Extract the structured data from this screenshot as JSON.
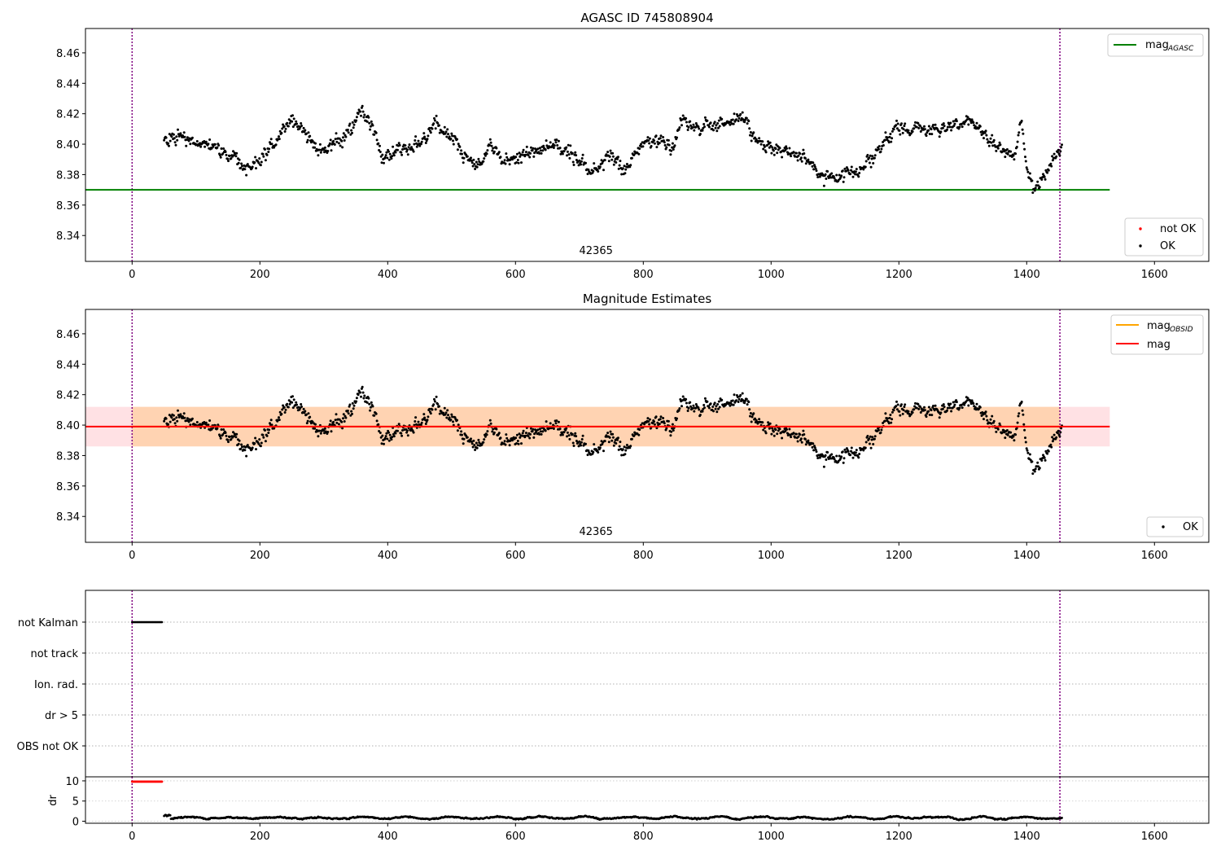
{
  "chart_data": [
    {
      "type": "scatter",
      "title": "AGASC ID 745808904",
      "xlim": [
        -73,
        1685
      ],
      "ylim": [
        8.323,
        8.476
      ],
      "x_ticks": [
        0,
        200,
        400,
        600,
        800,
        1000,
        1200,
        1400,
        1600
      ],
      "y_ticks": [
        8.34,
        8.36,
        8.38,
        8.4,
        8.42,
        8.44,
        8.46
      ],
      "annotation": "42365",
      "annotation_x": 726,
      "vlines": [
        0,
        1452
      ],
      "hline": {
        "label": "mag",
        "label_sub": "AGASC",
        "value": 8.37,
        "x_range": [
          -73,
          1530
        ],
        "color": "#008000"
      },
      "legend_top": {
        "position": "top-right",
        "entries": [
          {
            "label": "mag",
            "sub": "AGASC",
            "color": "#008000",
            "kind": "line"
          }
        ]
      },
      "legend_bottom": {
        "position": "bottom-right",
        "entries": [
          {
            "label": "not OK",
            "color": "#ff0000",
            "kind": "dot"
          },
          {
            "label": "OK",
            "color": "#000000",
            "kind": "dot"
          }
        ]
      },
      "series": [
        {
          "name": "OK",
          "color": "#000000",
          "x_range": [
            50,
            1455
          ],
          "n_points": 1300
        }
      ],
      "trend_knots": [
        [
          50,
          8.403
        ],
        [
          80,
          8.405
        ],
        [
          110,
          8.401
        ],
        [
          140,
          8.395
        ],
        [
          175,
          8.386
        ],
        [
          200,
          8.388
        ],
        [
          225,
          8.403
        ],
        [
          250,
          8.415
        ],
        [
          270,
          8.41
        ],
        [
          290,
          8.396
        ],
        [
          320,
          8.399
        ],
        [
          345,
          8.412
        ],
        [
          360,
          8.422
        ],
        [
          375,
          8.412
        ],
        [
          390,
          8.391
        ],
        [
          410,
          8.394
        ],
        [
          435,
          8.397
        ],
        [
          455,
          8.402
        ],
        [
          475,
          8.412
        ],
        [
          500,
          8.405
        ],
        [
          520,
          8.393
        ],
        [
          540,
          8.384
        ],
        [
          560,
          8.4
        ],
        [
          585,
          8.389
        ],
        [
          620,
          8.393
        ],
        [
          660,
          8.402
        ],
        [
          700,
          8.389
        ],
        [
          725,
          8.382
        ],
        [
          745,
          8.393
        ],
        [
          775,
          8.383
        ],
        [
          800,
          8.4
        ],
        [
          825,
          8.404
        ],
        [
          845,
          8.398
        ],
        [
          860,
          8.415
        ],
        [
          890,
          8.411
        ],
        [
          930,
          8.414
        ],
        [
          955,
          8.42
        ],
        [
          975,
          8.402
        ],
        [
          1010,
          8.396
        ],
        [
          1040,
          8.393
        ],
        [
          1075,
          8.381
        ],
        [
          1105,
          8.377
        ],
        [
          1140,
          8.383
        ],
        [
          1165,
          8.395
        ],
        [
          1200,
          8.412
        ],
        [
          1240,
          8.409
        ],
        [
          1280,
          8.412
        ],
        [
          1310,
          8.416
        ],
        [
          1340,
          8.404
        ],
        [
          1360,
          8.398
        ],
        [
          1380,
          8.392
        ],
        [
          1392,
          8.417
        ],
        [
          1400,
          8.385
        ],
        [
          1410,
          8.368
        ],
        [
          1430,
          8.382
        ],
        [
          1455,
          8.398
        ]
      ]
    },
    {
      "type": "scatter",
      "title": "Magnitude Estimates",
      "xlim": [
        -73,
        1685
      ],
      "ylim": [
        8.323,
        8.476
      ],
      "x_ticks": [
        0,
        200,
        400,
        600,
        800,
        1000,
        1200,
        1400,
        1600
      ],
      "y_ticks": [
        8.34,
        8.36,
        8.38,
        8.4,
        8.42,
        8.44,
        8.46
      ],
      "annotation": "42365",
      "annotation_x": 726,
      "vlines": [
        0,
        1452
      ],
      "mag": {
        "value": 8.399,
        "band": [
          8.386,
          8.412
        ],
        "x_range": [
          -73,
          1530
        ],
        "color": "#ff0000"
      },
      "mag_obsid": {
        "value": 8.399,
        "band": [
          8.386,
          8.412
        ],
        "x_range": [
          0,
          1452
        ],
        "color": "#ffa500"
      },
      "legend_top": {
        "position": "top-right",
        "entries": [
          {
            "label": "mag",
            "sub": "OBSID",
            "color": "#ffa500",
            "kind": "line"
          },
          {
            "label": "mag",
            "sub": "",
            "color": "#ff0000",
            "kind": "line"
          }
        ]
      },
      "legend_bottom": {
        "position": "bottom-right",
        "entries": [
          {
            "label": "OK",
            "color": "#000000",
            "kind": "dot"
          }
        ]
      }
    },
    {
      "type": "scatter",
      "title": "",
      "xlim": [
        -73,
        1685
      ],
      "x_ticks": [
        0,
        200,
        400,
        600,
        800,
        1000,
        1200,
        1400,
        1600
      ],
      "flag_labels": [
        "not Kalman",
        "not track",
        "Ion. rad.",
        "dr > 5",
        "OBS not OK"
      ],
      "flag_segments": [
        {
          "flag": "not Kalman",
          "x_range": [
            0,
            48
          ]
        }
      ],
      "dr": {
        "ylabel": "dr",
        "ylim": [
          -0.5,
          11
        ],
        "y_ticks": [
          0,
          5,
          10
        ],
        "clipped_value": 9.8,
        "clipped_x_range": [
          0,
          48
        ],
        "ok_x_range": [
          50,
          1455
        ],
        "ok_typical": [
          0.2,
          1.7
        ]
      },
      "vlines": [
        0,
        1452
      ]
    }
  ]
}
